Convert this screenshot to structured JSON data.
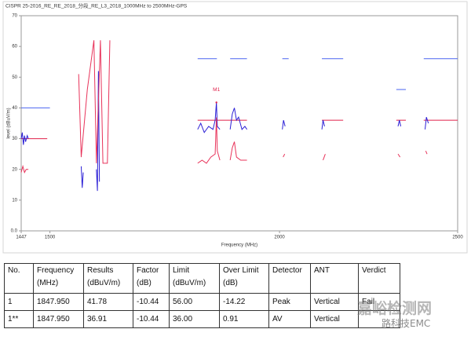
{
  "chart_data": {
    "type": "line",
    "title": "CISPR 25-2016_RE_RE_2018_分段_RE_L3_2018_1000MHz to 2500MHz-GPS",
    "y_label": "level (dBuV/m)",
    "x_label": "Frequency (MHz)",
    "xlim": [
      1447,
      2500
    ],
    "xticks": [
      1447,
      1500,
      2000,
      2500
    ],
    "xscale": "log",
    "ylim": [
      0,
      70
    ],
    "yticks": [
      {
        "value": 0,
        "label": "0.0"
      },
      10,
      20,
      30,
      40,
      50,
      60,
      70
    ],
    "series": [
      {
        "color": "#4a63f0",
        "x": [
          1447,
          1500,
          1501,
          1805,
          1849,
          1850,
          1880,
          1920,
          1921,
          2007,
          2023,
          2024,
          2109,
          2166,
          2167,
          2315,
          2343,
          2344,
          2396,
          2500
        ],
        "values": [
          40,
          40,
          null,
          56,
          56,
          null,
          56,
          56,
          null,
          56,
          56,
          null,
          56,
          56,
          null,
          46,
          46,
          null,
          56,
          56
        ]
      },
      {
        "color": "#e0204a",
        "x": [
          1447,
          1495,
          1496,
          1805,
          1920,
          1921,
          2109,
          2166,
          2167,
          2315,
          2343,
          2344,
          2396,
          2500
        ],
        "values": [
          30,
          30,
          null,
          36,
          36,
          null,
          36,
          36,
          null,
          36,
          36,
          null,
          36,
          36
        ]
      },
      {
        "color": "#2b1fd6",
        "x": [
          1447,
          1449,
          1451,
          1453,
          1455,
          1458,
          1460,
          1461,
          1560,
          1562,
          1564,
          1565,
          1590,
          1592,
          1594,
          1596,
          1597,
          1805,
          1812,
          1820,
          1830,
          1840,
          1845,
          1847.95,
          1850,
          1856,
          1857,
          1880,
          1885,
          1890,
          1895,
          1900,
          1908,
          1915,
          1920,
          1921,
          2007,
          2010,
          2014,
          2015,
          2109,
          2112,
          2116,
          2117,
          2320,
          2324,
          2328,
          2329,
          2400,
          2404,
          2410
        ],
        "values": [
          30,
          32,
          28,
          31,
          29,
          31,
          30,
          null,
          21,
          14,
          19,
          null,
          20,
          13,
          52,
          16,
          null,
          33,
          35,
          32,
          34,
          33,
          36,
          41.78,
          34,
          33,
          null,
          33,
          38,
          40,
          36,
          37,
          33,
          34,
          33,
          null,
          33,
          36,
          34,
          null,
          33,
          36,
          34,
          null,
          34,
          36,
          34,
          null,
          33,
          37,
          35
        ]
      },
      {
        "color": "#e8335a",
        "x": [
          1447,
          1450,
          1453,
          1456,
          1460,
          1461,
          1555,
          1560,
          1572,
          1585,
          1590,
          1598,
          1603,
          1612,
          1617,
          1618,
          1805,
          1815,
          1825,
          1835,
          1845,
          1847.95,
          1850,
          1856,
          1857,
          1880,
          1885,
          1890,
          1895,
          1905,
          1920,
          1921,
          2009,
          2013,
          2014,
          2112,
          2118,
          2119,
          2320,
          2326,
          2327,
          2402,
          2406
        ],
        "values": [
          19,
          21,
          19,
          20,
          20,
          null,
          51,
          24,
          46,
          62,
          22,
          62,
          22,
          22,
          62,
          null,
          22,
          23,
          22,
          24,
          25,
          36.91,
          26,
          23,
          null,
          23,
          27,
          29,
          24,
          23,
          23,
          null,
          24,
          25,
          null,
          23,
          25,
          null,
          25,
          24,
          null,
          26,
          25
        ]
      }
    ],
    "markers": [
      {
        "label": "M1",
        "x": 1847.95,
        "y": 41.78
      }
    ]
  },
  "table": {
    "header": [
      [
        "No."
      ],
      [
        "Frequency",
        "(MHz)"
      ],
      [
        "Results",
        "(dBuV/m)"
      ],
      [
        "Factor",
        "(dB)"
      ],
      [
        "Limit",
        "(dBuV/m)"
      ],
      [
        "Over Limit",
        "(dB)"
      ],
      [
        "Detector"
      ],
      [
        "ANT"
      ],
      [
        "Verdict"
      ]
    ],
    "rows": [
      [
        "1",
        "1847.950",
        "41.78",
        "-10.44",
        "56.00",
        "-14.22",
        "Peak",
        "Vertical",
        "Fail"
      ],
      [
        "1**",
        "1847.950",
        "36.91",
        "-10.44",
        "36.00",
        "0.91",
        "AV",
        "Vertical"
      ]
    ]
  },
  "watermark": [
    "嘉峪检测网",
    "路科技EMC"
  ]
}
